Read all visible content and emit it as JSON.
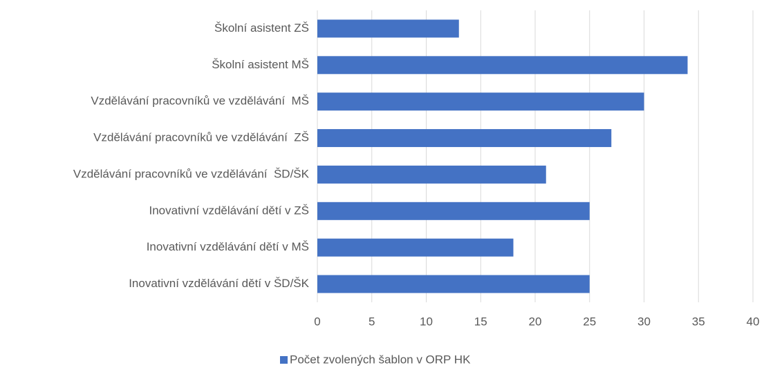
{
  "chart_data": {
    "type": "hbar",
    "categories": [
      "Školní asistent ZŠ",
      "Školní asistent MŠ",
      "Vzdělávání pracovníků ve vzdělávání  MŠ",
      "Vzdělávání pracovníků ve vzdělávání  ZŠ",
      "Vzdělávání pracovníků ve vzdělávání  ŠD/ŠK",
      "Inovativní vzdělávání dětí v ZŠ",
      "Inovativní vzdělávání dětí v MŠ",
      "Inovativní vzdělávání dětí v ŠD/ŠK"
    ],
    "series": [
      {
        "name": "Počet zvolených šablon v ORP HK",
        "color": "#4472c4",
        "values": [
          13,
          34,
          30,
          27,
          21,
          25,
          18,
          25
        ]
      }
    ],
    "xlim": [
      0,
      40
    ],
    "xticks": [
      0,
      5,
      10,
      15,
      20,
      25,
      30,
      35,
      40
    ],
    "grid": true,
    "legend": "bottom"
  }
}
